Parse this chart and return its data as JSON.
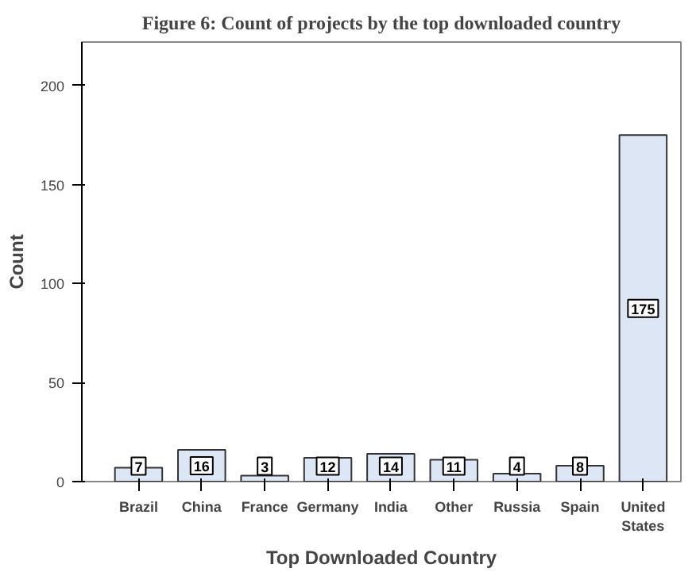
{
  "chart_data": {
    "type": "bar",
    "title": "Figure 6: Count of projects by the top downloaded country",
    "xlabel": "Top Downloaded Country",
    "ylabel": "Count",
    "categories": [
      "Brazil",
      "China",
      "France",
      "Germany",
      "India",
      "Other",
      "Russia",
      "Spain",
      "United States"
    ],
    "values": [
      7,
      16,
      3,
      12,
      14,
      11,
      4,
      8,
      175
    ],
    "color": "#dce6f4",
    "ylim": [
      0,
      222
    ],
    "yticks": [
      0,
      50,
      100,
      150,
      200
    ],
    "data_labels": true,
    "grid": false
  }
}
